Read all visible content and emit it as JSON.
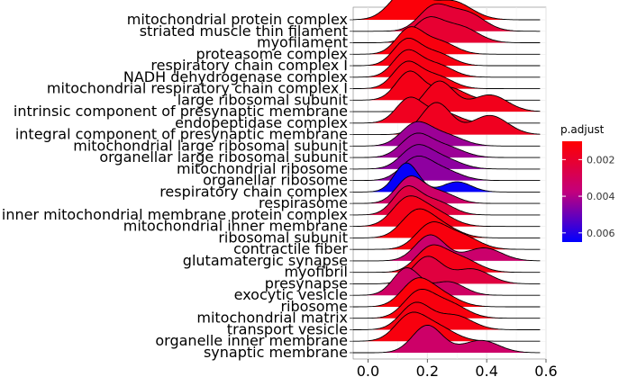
{
  "chart_data": {
    "type": "ridgeline",
    "xlabel": "",
    "ylabel": "",
    "xlim": [
      -0.05,
      0.6
    ],
    "x_ticks": [
      0.0,
      0.2,
      0.4,
      0.6
    ],
    "x_tick_labels": [
      "0.0",
      "0.2",
      "0.4",
      "0.6"
    ],
    "grid": true,
    "legend": {
      "title": "p.adjust",
      "placement": "right",
      "range": [
        0.001,
        0.0065
      ],
      "ticks": [
        0.002,
        0.004,
        0.006
      ],
      "tick_labels": [
        "0.002",
        "0.004",
        "0.006"
      ],
      "color_low": "#ff0000",
      "color_high": "#0000ff"
    },
    "categories": [
      {
        "label": "mitochondrial protein complex",
        "p_adjust": 0.0012,
        "peak": 0.13,
        "spread": 0.055,
        "second_peak": 0.28,
        "second_weight": 0.65,
        "height": 1.0
      },
      {
        "label": "striated muscle thin filament",
        "p_adjust": 0.0022,
        "peak": 0.22,
        "spread": 0.05,
        "second_peak": 0.33,
        "second_weight": 0.8,
        "height": 0.9
      },
      {
        "label": "myofilament",
        "p_adjust": 0.0021,
        "peak": 0.2,
        "spread": 0.05,
        "second_peak": 0.31,
        "second_weight": 0.7,
        "height": 0.85
      },
      {
        "label": "proteasome complex",
        "p_adjust": 0.0013,
        "peak": 0.14,
        "spread": 0.045,
        "second_peak": 0.24,
        "second_weight": 0.5,
        "height": 0.9
      },
      {
        "label": "respiratory chain complex I",
        "p_adjust": 0.0014,
        "peak": 0.13,
        "spread": 0.045,
        "second_peak": 0.23,
        "second_weight": 0.5,
        "height": 0.9
      },
      {
        "label": "NADH dehydrogenase complex",
        "p_adjust": 0.0014,
        "peak": 0.13,
        "spread": 0.045,
        "second_peak": 0.23,
        "second_weight": 0.5,
        "height": 0.9
      },
      {
        "label": "mitochondrial respiratory chain complex I",
        "p_adjust": 0.0014,
        "peak": 0.13,
        "spread": 0.045,
        "second_peak": 0.23,
        "second_weight": 0.5,
        "height": 0.9
      },
      {
        "label": "large ribosomal subunit",
        "p_adjust": 0.0015,
        "peak": 0.14,
        "spread": 0.045,
        "second_peak": 0.27,
        "second_weight": 0.45,
        "height": 0.95
      },
      {
        "label": "intrinsic component of presynaptic membrane",
        "p_adjust": 0.0016,
        "peak": 0.24,
        "spread": 0.05,
        "second_peak": 0.41,
        "second_weight": 0.55,
        "height": 1.0
      },
      {
        "label": "endopeptidase complex",
        "p_adjust": 0.0017,
        "peak": 0.14,
        "spread": 0.045,
        "second_peak": 0.25,
        "second_weight": 0.45,
        "height": 0.85
      },
      {
        "label": "integral component of presynaptic membrane",
        "p_adjust": 0.0017,
        "peak": 0.23,
        "spread": 0.05,
        "second_peak": 0.41,
        "second_weight": 0.6,
        "height": 1.05
      },
      {
        "label": "mitochondrial large ribosomal subunit",
        "p_adjust": 0.0043,
        "peak": 0.16,
        "spread": 0.05,
        "second_peak": 0.26,
        "second_weight": 0.5,
        "height": 0.8
      },
      {
        "label": "organellar large ribosomal subunit",
        "p_adjust": 0.0043,
        "peak": 0.16,
        "spread": 0.05,
        "second_peak": 0.26,
        "second_weight": 0.5,
        "height": 0.8
      },
      {
        "label": "mitochondrial ribosome",
        "p_adjust": 0.0045,
        "peak": 0.16,
        "spread": 0.05,
        "second_peak": 0.25,
        "second_weight": 0.5,
        "height": 0.8
      },
      {
        "label": "organellar ribosome",
        "p_adjust": 0.0045,
        "peak": 0.16,
        "spread": 0.05,
        "second_peak": 0.25,
        "second_weight": 0.5,
        "height": 0.8
      },
      {
        "label": "respiratory chain complex",
        "p_adjust": 0.0064,
        "peak": 0.13,
        "spread": 0.04,
        "second_peak": 0.3,
        "second_weight": 0.35,
        "height": 0.95
      },
      {
        "label": "respirasome",
        "p_adjust": 0.0033,
        "peak": 0.14,
        "spread": 0.045,
        "second_peak": 0.24,
        "second_weight": 0.45,
        "height": 0.9
      },
      {
        "label": "inner mitochondrial membrane protein complex",
        "p_adjust": 0.0024,
        "peak": 0.13,
        "spread": 0.045,
        "second_peak": 0.23,
        "second_weight": 0.5,
        "height": 0.95
      },
      {
        "label": "mitochondrial inner membrane",
        "p_adjust": 0.0015,
        "peak": 0.13,
        "spread": 0.05,
        "second_peak": 0.22,
        "second_weight": 0.6,
        "height": 1.0
      },
      {
        "label": "ribosomal subunit",
        "p_adjust": 0.0012,
        "peak": 0.16,
        "spread": 0.05,
        "second_peak": 0.24,
        "second_weight": 0.55,
        "height": 0.95
      },
      {
        "label": "contractile fiber",
        "p_adjust": 0.0013,
        "peak": 0.21,
        "spread": 0.05,
        "second_peak": 0.31,
        "second_weight": 0.6,
        "height": 0.9
      },
      {
        "label": "glutamatergic synapse",
        "p_adjust": 0.0034,
        "peak": 0.21,
        "spread": 0.05,
        "second_peak": 0.39,
        "second_weight": 0.5,
        "height": 0.85
      },
      {
        "label": "myofibril",
        "p_adjust": 0.0015,
        "peak": 0.21,
        "spread": 0.05,
        "second_peak": 0.31,
        "second_weight": 0.6,
        "height": 0.9
      },
      {
        "label": "presynapse",
        "p_adjust": 0.0024,
        "peak": 0.2,
        "spread": 0.05,
        "second_peak": 0.35,
        "second_weight": 0.55,
        "height": 0.9
      },
      {
        "label": "exocytic vesicle",
        "p_adjust": 0.0032,
        "peak": 0.13,
        "spread": 0.045,
        "second_peak": 0.27,
        "second_weight": 0.5,
        "height": 0.9
      },
      {
        "label": "ribosome",
        "p_adjust": 0.0012,
        "peak": 0.16,
        "spread": 0.05,
        "second_peak": 0.24,
        "second_weight": 0.55,
        "height": 0.95
      },
      {
        "label": "mitochondrial matrix",
        "p_adjust": 0.0013,
        "peak": 0.17,
        "spread": 0.05,
        "second_peak": 0.27,
        "second_weight": 0.6,
        "height": 0.95
      },
      {
        "label": "transport vesicle",
        "p_adjust": 0.0014,
        "peak": 0.16,
        "spread": 0.05,
        "second_peak": 0.29,
        "second_weight": 0.55,
        "height": 0.9
      },
      {
        "label": "organelle inner membrane",
        "p_adjust": 0.0013,
        "peak": 0.14,
        "spread": 0.05,
        "second_peak": 0.23,
        "second_weight": 0.6,
        "height": 0.95
      },
      {
        "label": "synaptic membrane",
        "p_adjust": 0.0033,
        "peak": 0.2,
        "spread": 0.05,
        "second_peak": 0.38,
        "second_weight": 0.45,
        "height": 0.9
      }
    ]
  }
}
